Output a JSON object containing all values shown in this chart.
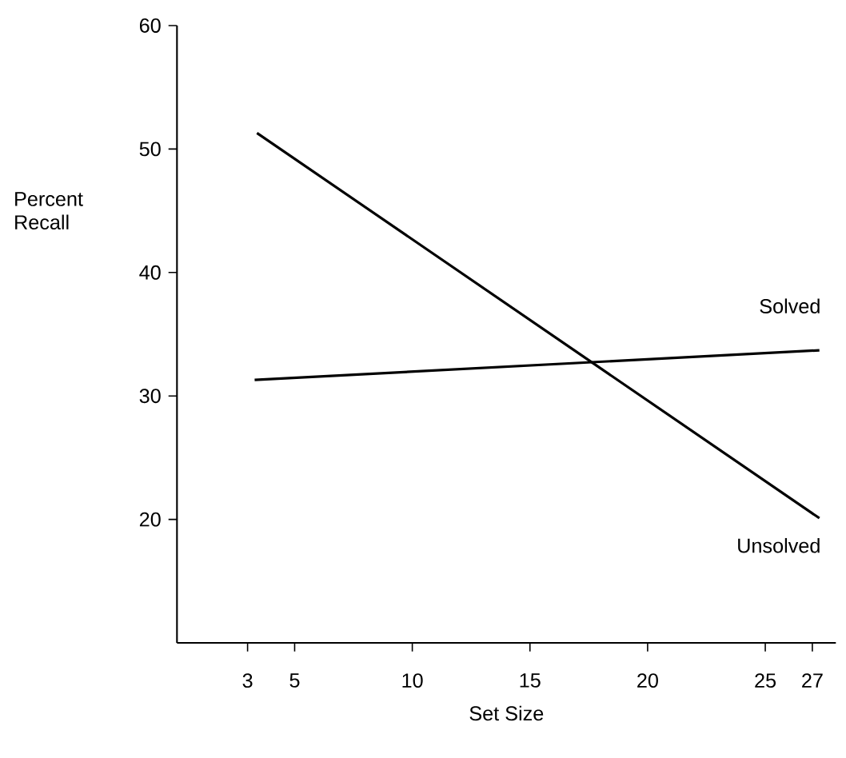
{
  "chart_data": {
    "type": "line",
    "xlabel": "Set Size",
    "ylabel": "Percent Recall",
    "xlim": [
      0,
      28
    ],
    "ylim": [
      10,
      60
    ],
    "xticks": [
      3,
      5,
      10,
      15,
      20,
      25,
      27
    ],
    "yticks": [
      20,
      30,
      40,
      50,
      60
    ],
    "grid": false,
    "legend": false,
    "marker": "none",
    "line_style": "solid",
    "series": [
      {
        "name": "Solved",
        "color": "#000000",
        "x": [
          3.3,
          27.3
        ],
        "values": [
          31.3,
          33.7
        ]
      },
      {
        "name": "Unsolved",
        "color": "#000000",
        "x": [
          3.4,
          27.3
        ],
        "values": [
          51.3,
          20.1
        ]
      }
    ]
  }
}
